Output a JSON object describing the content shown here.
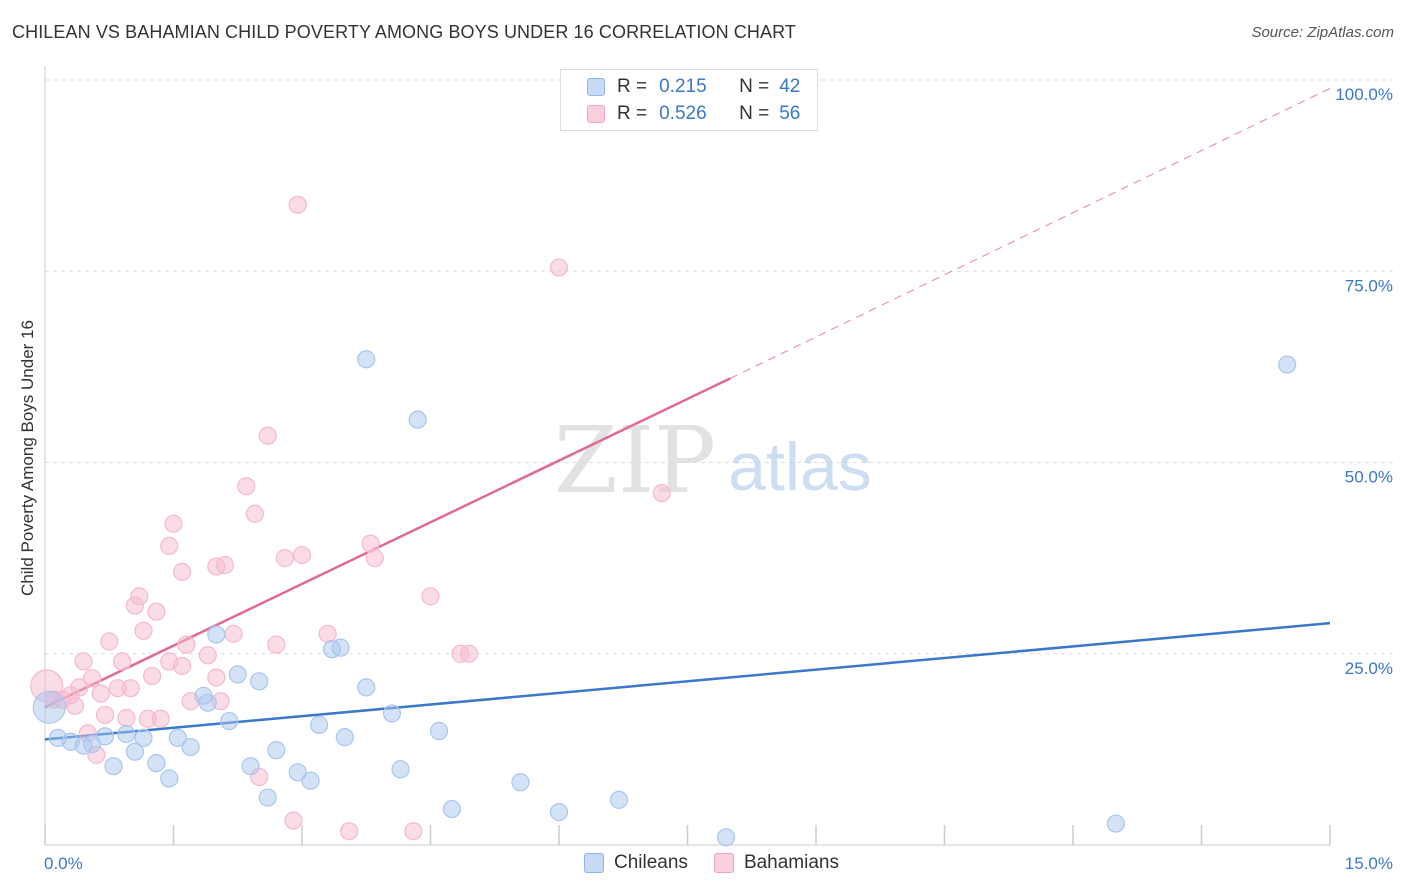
{
  "title": "CHILEAN VS BAHAMIAN CHILD POVERTY AMONG BOYS UNDER 16 CORRELATION CHART",
  "source": "Source: ZipAtlas.com",
  "watermark": {
    "zip": "ZIP",
    "atlas": "atlas"
  },
  "legend_top": {
    "rows": [
      {
        "r_label": "R =",
        "r_value": "0.215",
        "n_label": "N =",
        "n_value": "42",
        "color": "#8fb4e6"
      },
      {
        "r_label": "R =",
        "r_value": "0.526",
        "n_label": "N =",
        "n_value": "56",
        "color": "#f2a7bf"
      }
    ]
  },
  "chart_data": {
    "type": "scatter",
    "title": "CHILEAN VS BAHAMIAN CHILD POVERTY AMONG BOYS UNDER 16 CORRELATION CHART",
    "xlabel": "",
    "ylabel": "Child Poverty Among Boys Under 16",
    "xlim": [
      0,
      15
    ],
    "ylim": [
      0,
      100
    ],
    "x_tick_labels": [
      "0.0%",
      "15.0%"
    ],
    "y_tick_labels": [
      "25.0%",
      "50.0%",
      "75.0%",
      "100.0%"
    ],
    "y_ticks": [
      25,
      50,
      75,
      100
    ],
    "grid": true,
    "legend_placement": "bottom",
    "series": [
      {
        "name": "Chileans",
        "color": "#3a78c9",
        "fill": "#a9c6ee",
        "trend": {
          "x0": 0,
          "y0": 13.8,
          "x1": 15,
          "y1": 29.0
        },
        "points": [
          [
            0.05,
            18.0
          ],
          [
            0.15,
            14.0
          ],
          [
            0.3,
            13.5
          ],
          [
            0.45,
            13.0
          ],
          [
            0.55,
            13.2
          ],
          [
            0.7,
            14.2
          ],
          [
            0.8,
            10.3
          ],
          [
            0.95,
            14.5
          ],
          [
            1.05,
            12.2
          ],
          [
            1.15,
            14.0
          ],
          [
            1.3,
            10.7
          ],
          [
            1.45,
            8.7
          ],
          [
            1.55,
            14.0
          ],
          [
            1.7,
            12.8
          ],
          [
            1.85,
            19.5
          ],
          [
            1.9,
            18.6
          ],
          [
            2.0,
            27.5
          ],
          [
            2.15,
            16.2
          ],
          [
            2.25,
            22.3
          ],
          [
            2.4,
            10.3
          ],
          [
            2.5,
            21.4
          ],
          [
            2.6,
            6.2
          ],
          [
            2.7,
            12.4
          ],
          [
            2.95,
            9.5
          ],
          [
            3.1,
            8.4
          ],
          [
            3.2,
            15.7
          ],
          [
            3.35,
            25.6
          ],
          [
            3.45,
            25.8
          ],
          [
            3.5,
            14.1
          ],
          [
            3.75,
            20.6
          ],
          [
            3.75,
            63.5
          ],
          [
            4.05,
            17.2
          ],
          [
            4.15,
            9.9
          ],
          [
            4.35,
            55.6
          ],
          [
            4.6,
            14.9
          ],
          [
            4.75,
            4.7
          ],
          [
            5.55,
            8.2
          ],
          [
            6.0,
            4.3
          ],
          [
            6.7,
            5.9
          ],
          [
            7.95,
            1.0
          ],
          [
            12.5,
            2.8
          ],
          [
            14.5,
            62.8
          ]
        ]
      },
      {
        "name": "Bahamians",
        "color": "#e06a93",
        "fill": "#f6b9cd",
        "trend": {
          "x0": 0,
          "y0": 18.0,
          "x1": 8.0,
          "y1": 61.0,
          "dash_x1": 15,
          "dash_y1": 98.9
        },
        "points": [
          [
            0.02,
            20.8
          ],
          [
            0.1,
            19.0
          ],
          [
            0.2,
            19.0
          ],
          [
            0.3,
            19.6
          ],
          [
            0.35,
            18.2
          ],
          [
            0.4,
            20.6
          ],
          [
            0.45,
            24.0
          ],
          [
            0.5,
            14.6
          ],
          [
            0.55,
            21.8
          ],
          [
            0.6,
            11.8
          ],
          [
            0.7,
            17.0
          ],
          [
            0.75,
            26.6
          ],
          [
            0.85,
            20.5
          ],
          [
            0.9,
            24.0
          ],
          [
            0.95,
            16.6
          ],
          [
            1.0,
            20.5
          ],
          [
            1.05,
            31.3
          ],
          [
            1.1,
            32.5
          ],
          [
            1.2,
            16.5
          ],
          [
            1.25,
            22.1
          ],
          [
            1.3,
            30.5
          ],
          [
            1.35,
            16.5
          ],
          [
            1.45,
            24.0
          ],
          [
            1.45,
            39.1
          ],
          [
            1.5,
            42.0
          ],
          [
            1.6,
            35.7
          ],
          [
            1.6,
            23.4
          ],
          [
            1.65,
            26.2
          ],
          [
            1.7,
            18.8
          ],
          [
            1.9,
            24.8
          ],
          [
            2.0,
            21.9
          ],
          [
            2.0,
            36.4
          ],
          [
            2.05,
            18.8
          ],
          [
            2.1,
            36.6
          ],
          [
            2.2,
            27.6
          ],
          [
            2.35,
            46.9
          ],
          [
            2.45,
            43.3
          ],
          [
            2.5,
            8.9
          ],
          [
            2.6,
            53.5
          ],
          [
            2.7,
            26.2
          ],
          [
            2.8,
            37.5
          ],
          [
            2.9,
            3.2
          ],
          [
            2.95,
            83.7
          ],
          [
            3.0,
            37.9
          ],
          [
            3.3,
            27.6
          ],
          [
            3.55,
            1.8
          ],
          [
            3.8,
            39.4
          ],
          [
            3.85,
            37.5
          ],
          [
            4.3,
            1.8
          ],
          [
            4.5,
            32.5
          ],
          [
            4.85,
            25.0
          ],
          [
            4.95,
            25.0
          ],
          [
            6.0,
            75.5
          ],
          [
            7.2,
            46.0
          ],
          [
            0.65,
            19.8
          ],
          [
            1.15,
            28.0
          ]
        ]
      }
    ]
  }
}
